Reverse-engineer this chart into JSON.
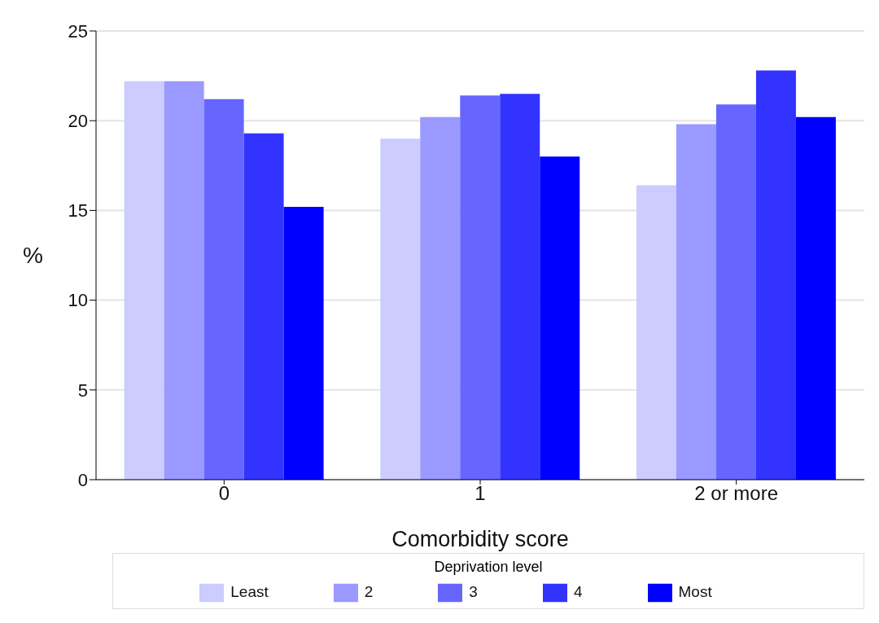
{
  "chart_data": {
    "type": "bar",
    "xlabel": "Comorbidity score",
    "ylabel": "%",
    "legend_title": "Deprivation level",
    "categories": [
      "0",
      "1",
      "2 or more"
    ],
    "series": [
      {
        "name": "Least",
        "color": "#ccccff",
        "values": [
          22.2,
          19.0,
          16.4
        ]
      },
      {
        "name": "2",
        "color": "#9999ff",
        "values": [
          22.2,
          20.2,
          19.8
        ]
      },
      {
        "name": "3",
        "color": "#6666ff",
        "values": [
          21.2,
          21.4,
          20.9
        ]
      },
      {
        "name": "4",
        "color": "#3333ff",
        "values": [
          19.3,
          21.5,
          22.8
        ]
      },
      {
        "name": "Most",
        "color": "#0000ff",
        "values": [
          15.2,
          18.0,
          20.2
        ]
      }
    ],
    "ylim": [
      0,
      25
    ],
    "yticks": [
      0,
      5,
      10,
      15,
      20,
      25
    ],
    "grid": "y",
    "legend": "bottom"
  }
}
